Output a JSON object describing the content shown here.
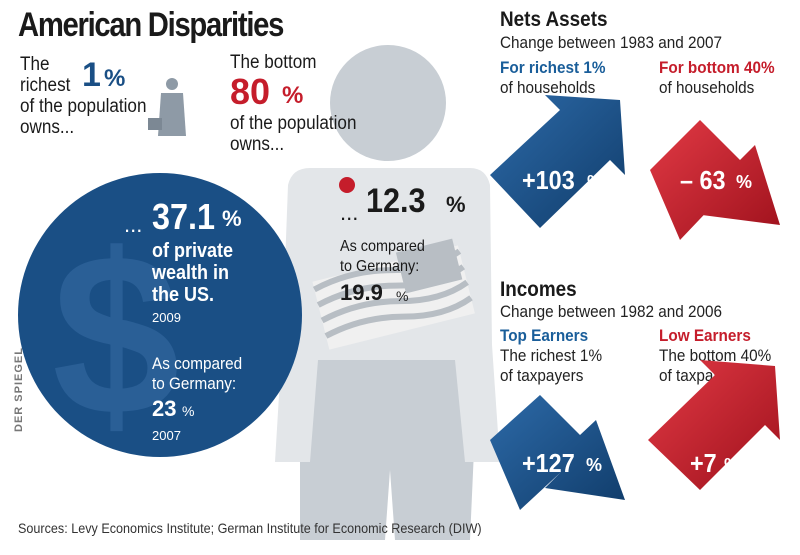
{
  "title": "American Disparities",
  "top1": {
    "l1": "The",
    "l2": "richest",
    "num": "1",
    "pct": "%",
    "l3": "of the population",
    "l4": "owns..."
  },
  "bottom80": {
    "l1": "The bottom",
    "num": "80",
    "pct": "%",
    "l2": "of the population",
    "l3": "owns..."
  },
  "circle": {
    "ellipsis": "...",
    "value": "37.1",
    "pct": "%",
    "l1": "of private",
    "l2": "wealth in",
    "l3": "the US.",
    "year": "2009",
    "cmp1": "As compared",
    "cmp2": "to Germany:",
    "cmp_value": "23",
    "cmp_pct": "%",
    "cmp_year": "2007",
    "symbol": "$"
  },
  "person": {
    "ellipsis": "...",
    "value": "12.3",
    "pct": "%",
    "cmp1": "As compared",
    "cmp2": "to Germany:",
    "cmp_value": "19.9",
    "cmp_pct": "%"
  },
  "nets": {
    "heading": "Nets Assets",
    "sub": "Change between 1983 and 2007",
    "left_title": "For richest 1%",
    "left_sub": "of households",
    "right_title": "For bottom 40%",
    "right_sub": "of households",
    "left_value": "+103",
    "left_pct": "%",
    "right_value": "– 63",
    "right_pct": "%"
  },
  "incomes": {
    "heading": "Incomes",
    "sub": "Change between 1982 and 2006",
    "left_title": "Top Earners",
    "left_sub1": "The richest 1%",
    "left_sub2": "of taxpayers",
    "right_title": "Low Earners",
    "right_sub1": "The bottom 40%",
    "right_sub2": "of taxpayers",
    "left_value": "+127",
    "left_pct": "%",
    "right_value": "+7",
    "right_pct": "%"
  },
  "source": "Sources: Levy Economics Institute; German Institute for Economic Research (DIW)",
  "credit": "DER SPIEGEL",
  "colors": {
    "blue": "#1a4f85",
    "red": "#c51d2b",
    "grey": "#c8ced4",
    "light": "#e3e6e9"
  }
}
